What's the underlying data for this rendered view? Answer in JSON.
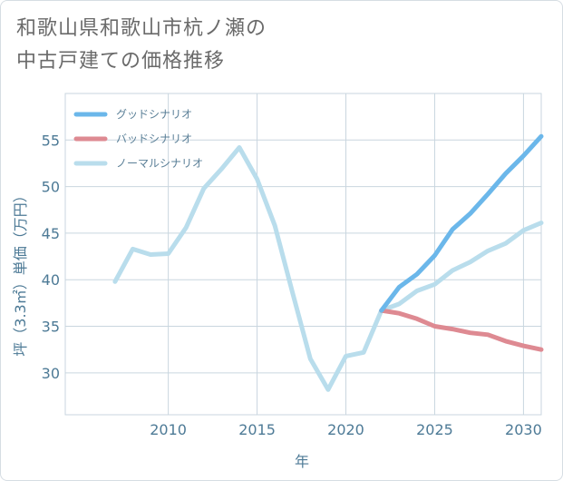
{
  "title": {
    "line1": "和歌山県和歌山市杭ノ瀬の",
    "line2": "中古戸建ての価格推移"
  },
  "chart_data": {
    "type": "line",
    "title": "和歌山県和歌山市杭ノ瀬の中古戸建ての価格推移",
    "xlabel": "年",
    "ylabel": "坪（3.3㎡）単価（万円）",
    "xlim": [
      2004.2,
      2031
    ],
    "ylim": [
      25.5,
      60
    ],
    "xticks": [
      2010,
      2015,
      2020,
      2025,
      2030
    ],
    "yticks": [
      30,
      35,
      40,
      45,
      50,
      55
    ],
    "grid": true,
    "legend_position": "top-left",
    "series": [
      {
        "name": "グッドシナリオ",
        "color": "#6bb7ea",
        "x": [
          2022,
          2023,
          2024,
          2025,
          2026,
          2027,
          2028,
          2029,
          2030,
          2031
        ],
        "values": [
          36.7,
          39.2,
          40.6,
          42.6,
          45.4,
          47.1,
          49.2,
          51.4,
          53.3,
          55.4
        ]
      },
      {
        "name": "バッドシナリオ",
        "color": "#de8a92",
        "x": [
          2022,
          2023,
          2024,
          2025,
          2026,
          2027,
          2028,
          2029,
          2030,
          2031
        ],
        "values": [
          36.7,
          36.4,
          35.8,
          35.0,
          34.7,
          34.3,
          34.1,
          33.4,
          32.9,
          32.5
        ]
      },
      {
        "name": "ノーマルシナリオ",
        "color": "#b9ddec",
        "x": [
          2007,
          2008,
          2009,
          2010,
          2011,
          2012,
          2013,
          2014,
          2015,
          2016,
          2017,
          2018,
          2019,
          2020,
          2021,
          2022,
          2023,
          2024,
          2025,
          2026,
          2027,
          2028,
          2029,
          2030,
          2031
        ],
        "values": [
          39.8,
          43.3,
          42.7,
          42.8,
          45.6,
          49.8,
          51.9,
          54.2,
          50.8,
          45.8,
          38.6,
          31.5,
          28.2,
          31.8,
          32.2,
          36.7,
          37.4,
          38.8,
          39.5,
          41.0,
          41.9,
          43.1,
          43.9,
          45.3,
          46.1
        ]
      }
    ]
  }
}
